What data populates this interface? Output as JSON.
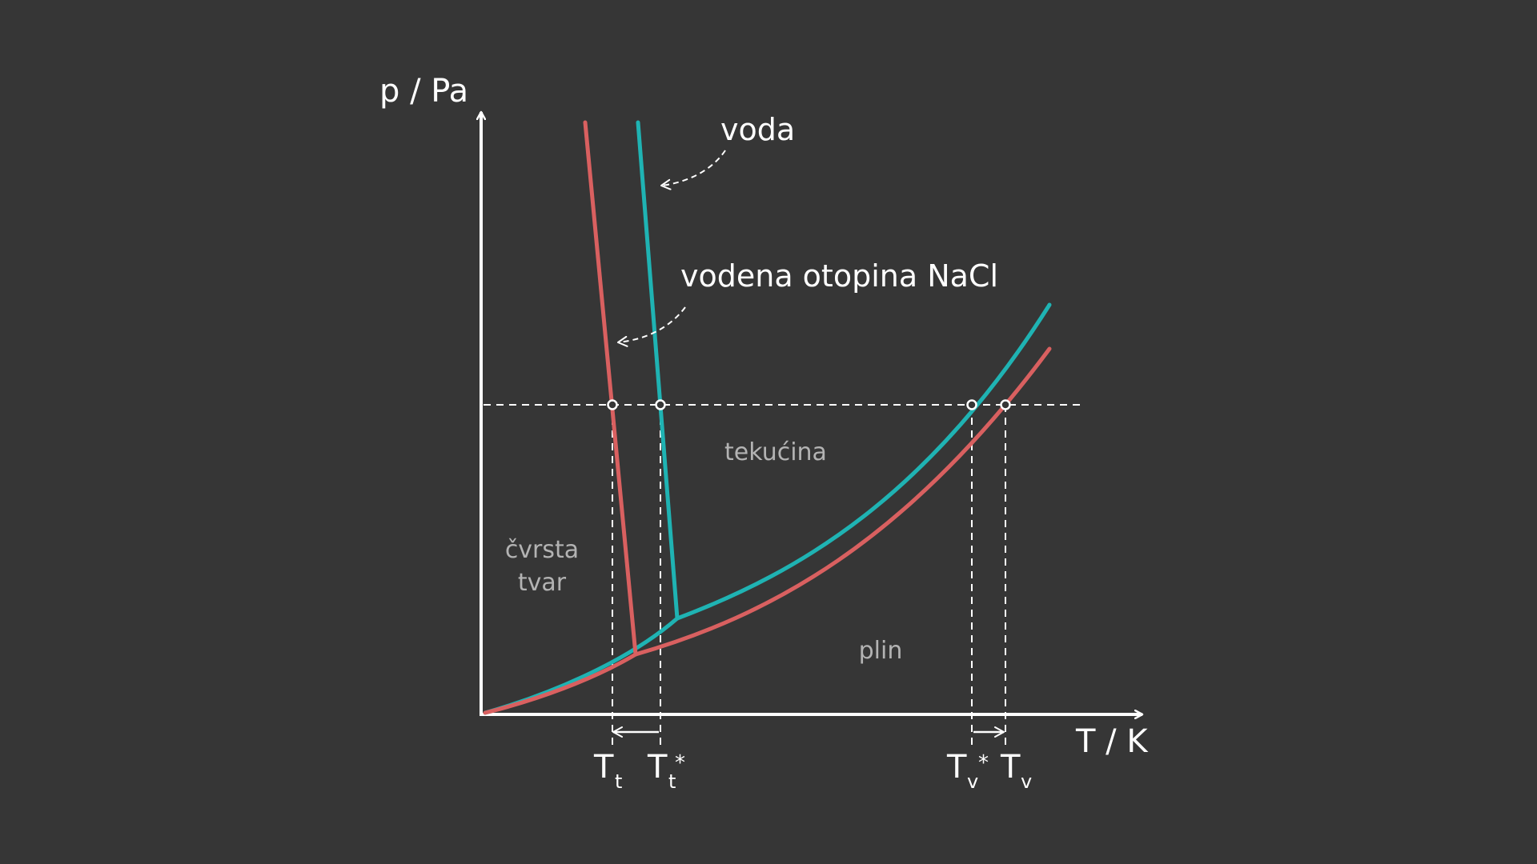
{
  "axes": {
    "y_label": "p / Pa",
    "x_label": "T / K"
  },
  "curves": {
    "water": {
      "label": "voda",
      "color": "#1fb3b3"
    },
    "solution": {
      "label": "vodena otopina NaCl",
      "color": "#d96060"
    }
  },
  "regions": {
    "solid_line1": "čvrsta",
    "solid_line2": "tvar",
    "liquid": "tekućina",
    "gas": "plin"
  },
  "ticks": {
    "tt": {
      "main": "T",
      "sub": "t",
      "star": ""
    },
    "tt_star": {
      "main": "T",
      "sub": "t",
      "star": "*"
    },
    "tv_star": {
      "main": "T",
      "sub": "v",
      "star": "*"
    },
    "tv": {
      "main": "T",
      "sub": "v",
      "star": ""
    }
  },
  "colors": {
    "background": "#363636",
    "foreground": "#ffffff",
    "region_text": "#b3b3b3",
    "water": "#1fb3b3",
    "solution": "#d96060"
  }
}
